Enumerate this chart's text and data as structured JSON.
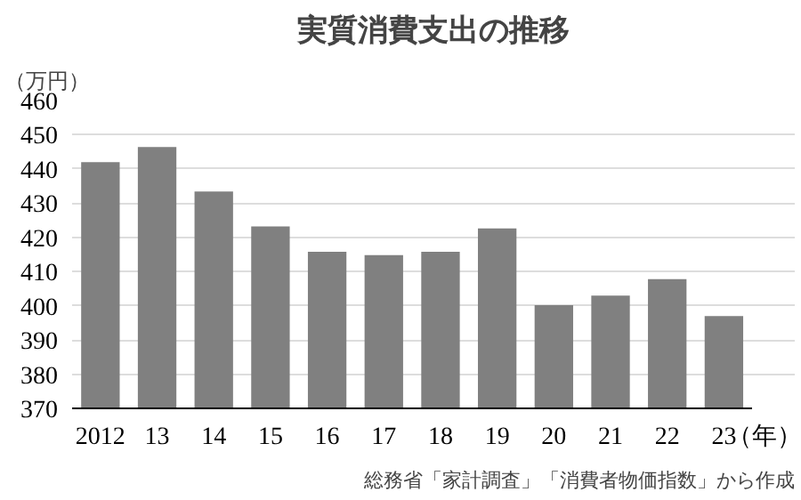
{
  "chart_data": {
    "type": "bar",
    "title": "実質消費支出の推移",
    "ylabel": "（万円）",
    "xlabel": "（年）",
    "categories": [
      "2012",
      "13",
      "14",
      "15",
      "16",
      "17",
      "18",
      "19",
      "20",
      "21",
      "22",
      "23"
    ],
    "values": [
      442,
      446.4,
      433.4,
      423.2,
      415.8,
      414.8,
      415.8,
      422.6,
      400.2,
      403,
      407.8,
      397
    ],
    "color": "#808080",
    "ylim": [
      370,
      460
    ],
    "yticks": [
      370,
      380,
      390,
      400,
      410,
      420,
      430,
      440,
      450,
      460
    ],
    "grid": "y",
    "annotations": [
      "総務省「家計調査」「消費者物価指数」から作成"
    ]
  }
}
